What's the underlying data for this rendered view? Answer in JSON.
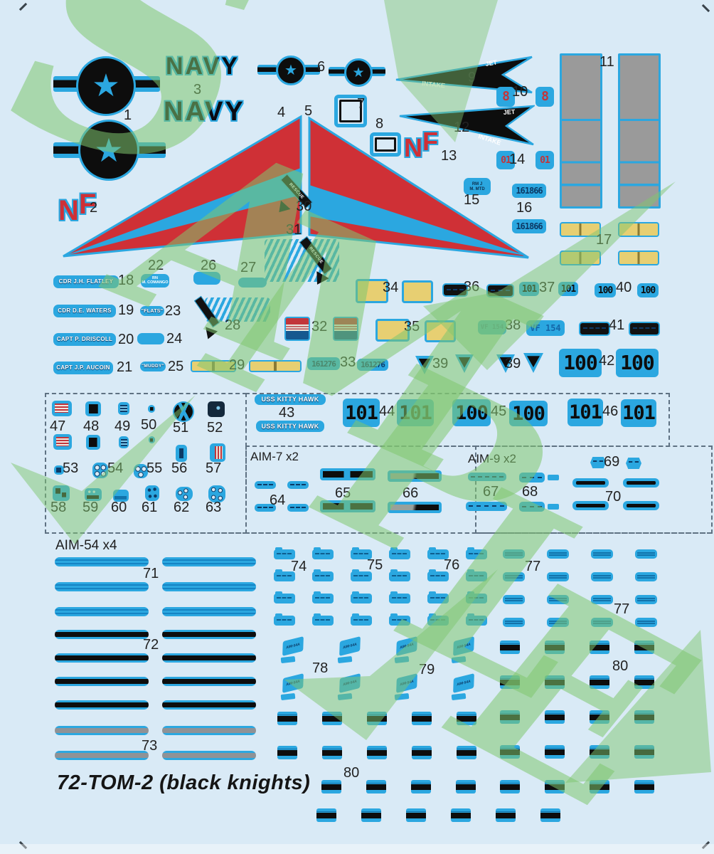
{
  "sheet": {
    "title": "72-TOM-2 (black knights)",
    "background": "#d9eaf6",
    "film_blue": "#2ba7e0",
    "red": "#cf3036",
    "yellow": "#e7cf72",
    "walkway_gray": "#9a9a9a",
    "black": "#0d0d0d",
    "watermark_green": "#7ec56e"
  },
  "watermark": {
    "letters": [
      "S",
      "A",
      "M",
      "P",
      "L",
      "E"
    ]
  },
  "sections": {
    "aim7": "AIM-7 x2",
    "aim9": "AIM-9 x2",
    "aim54": "AIM-54 x4"
  },
  "texts": {
    "navy": "NAVY",
    "nf_n": "N",
    "nf_f": "F",
    "jet": "JET",
    "intake": "INTAKE",
    "rescue": "RESCUE",
    "buno1": "161866",
    "buno2": "161276",
    "modex101": "101",
    "modex100": "100",
    "digit8": "8",
    "digit01": "01",
    "squadron": "VF 154",
    "carrier": "USS KITTY HAWK",
    "crew1": "CDR J.H. FLATLEY",
    "crew2": "CDR D.E. WATERS",
    "crew3": "CAPT P. DRISCOLL",
    "crew4": "CAPT J.P. AUCOIN",
    "rio_line1": "RN",
    "rio_line2": "M. COMANGO",
    "callsign1": "\"FLATS\"",
    "callsign2": "\"MUDDY\"",
    "stencil_rm1": "RM J",
    "stencil_rm2": "M. MTD",
    "aim54a": "AIM-54A"
  },
  "num": {
    "1": "1",
    "2": "2",
    "3": "3",
    "4": "4",
    "5": "5",
    "6": "6",
    "7": "7",
    "8": "8",
    "9": "9",
    "10": "10",
    "11": "11",
    "12": "12",
    "13": "13",
    "14": "14",
    "15": "15",
    "16": "16",
    "17": "17",
    "18": "18",
    "19": "19",
    "20": "20",
    "21": "21",
    "22": "22",
    "23": "23",
    "24": "24",
    "25": "25",
    "26": "26",
    "27": "27",
    "28": "28",
    "29": "29",
    "30": "30",
    "31": "31",
    "32": "32",
    "33": "33",
    "34": "34",
    "35": "35",
    "36": "36",
    "37": "37",
    "38": "38",
    "39": "39",
    "40": "40",
    "41": "41",
    "42": "42",
    "43": "43",
    "44": "44",
    "45": "45",
    "46": "46",
    "47": "47",
    "48": "48",
    "49": "49",
    "50": "50",
    "51": "51",
    "52": "52",
    "53": "53",
    "54": "54",
    "55": "55",
    "56": "56",
    "57": "57",
    "58": "58",
    "59": "59",
    "60": "60",
    "61": "61",
    "62": "62",
    "63": "63",
    "64": "64",
    "65": "65",
    "66": "66",
    "67": "67",
    "68": "68",
    "69": "69",
    "70": "70",
    "71": "71",
    "72": "72",
    "73": "73",
    "74": "74",
    "75": "75",
    "76": "76",
    "77": "77",
    "78": "78",
    "79": "79",
    "80": "80"
  }
}
